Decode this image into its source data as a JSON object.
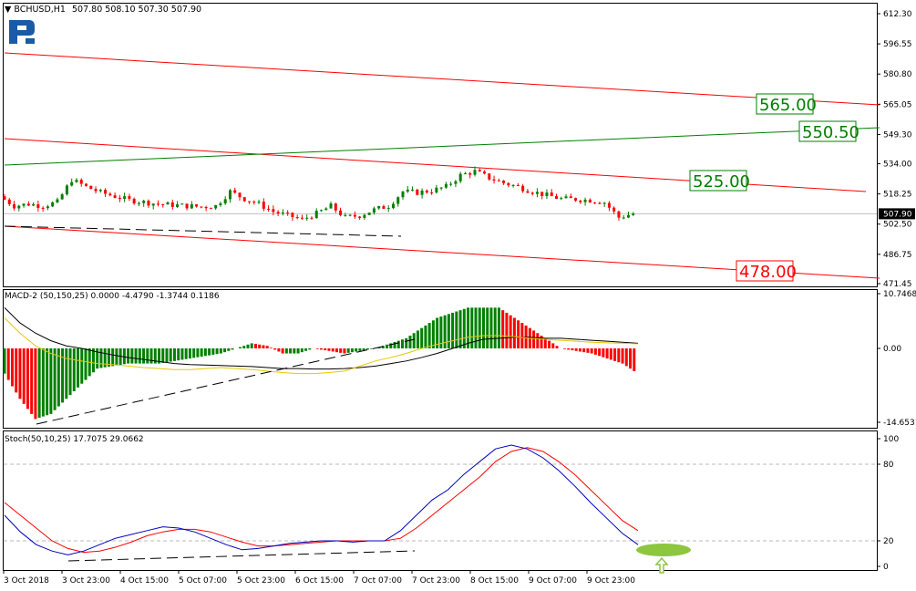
{
  "header": {
    "symbol": "BCHUSD,H1",
    "ohlc": "507.80 508.10 507.30 507.90"
  },
  "colors": {
    "bull": "#008000",
    "bear": "#ff0000",
    "trend_red": "#ff0000",
    "trend_green": "#008000",
    "marker": "#8dc63f",
    "logo": "#1a5aa6"
  },
  "chart_data": [
    {
      "type": "candlestick",
      "symbol": "BCHUSD",
      "timeframe": "H1",
      "yticks": [
        "612.30",
        "596.55",
        "580.80",
        "565.05",
        "549.30",
        "534.00",
        "518.25",
        "502.50",
        "486.75",
        "471.45"
      ],
      "ylim": [
        471.45,
        612.3
      ],
      "current_price": "507.90",
      "closes": [
        517,
        512,
        513,
        512,
        514,
        525.7,
        522,
        519,
        517,
        515,
        514,
        513,
        512.5,
        512,
        511.5,
        512,
        519.5,
        515.7,
        513,
        509,
        507,
        505,
        508,
        511.9,
        506,
        507,
        510,
        512,
        519.5,
        519,
        520,
        522,
        528,
        530,
        526.6,
        524,
        522,
        519.5,
        517.5,
        515.7,
        515.5,
        515,
        513.8,
        506,
        508
      ],
      "levels": [
        {
          "label": "565.00",
          "color": "green"
        },
        {
          "label": "550.50",
          "color": "green"
        },
        {
          "label": "525.00",
          "color": "green"
        },
        {
          "label": "478.00",
          "color": "red"
        }
      ],
      "xticks": [
        "3 Oct 2018",
        "3 Oct 23:00",
        "4 Oct 15:00",
        "5 Oct 07:00",
        "5 Oct 23:00",
        "6 Oct 15:00",
        "7 Oct 07:00",
        "7 Oct 23:00",
        "8 Oct 15:00",
        "9 Oct 07:00",
        "9 Oct 23:00"
      ]
    },
    {
      "type": "bar",
      "title": "MACD-2 (50,150,25) 0.0000 -4.4790 -1.3744 0.1186",
      "yticks": [
        "10.7468",
        "0.00",
        "-14.6531"
      ],
      "ylim": [
        -14.6531,
        10.7468
      ],
      "histogram": [
        -5,
        -10,
        -14,
        -13,
        -10,
        -7,
        -4,
        -3.5,
        -3,
        -3,
        -3,
        -2.5,
        -2,
        -1.5,
        -1,
        0,
        1,
        0.5,
        -1,
        -1,
        0,
        -0.5,
        -1,
        -0.5,
        0,
        1,
        2,
        4,
        6,
        7,
        8,
        8,
        8,
        6,
        4,
        2,
        0,
        -0.5,
        -1,
        -2,
        -3,
        -5
      ],
      "signal_black": [
        8,
        5,
        3,
        1.5,
        0.5,
        0,
        -0.7,
        -1.3,
        -1.8,
        -2.2,
        -2.6,
        -3,
        -3.2,
        -3.3,
        -3.4,
        -3.5,
        -3.6,
        -3.8,
        -4,
        -4,
        -4.1,
        -4.1,
        -4,
        -3.8,
        -3.5,
        -3,
        -2.5,
        -1.8,
        -1,
        0,
        1,
        1.8,
        2,
        2.2,
        2.2,
        2,
        2,
        1.8,
        1.6,
        1.4,
        1.2,
        1
      ],
      "signal_yellow": [
        6,
        3,
        0.5,
        -1,
        -2,
        -2.5,
        -3,
        -3.2,
        -3.5,
        -3.8,
        -4,
        -4.2,
        -4.2,
        -4,
        -3.8,
        -4,
        -4.2,
        -4.5,
        -4.8,
        -5,
        -5,
        -4.8,
        -4.5,
        -3.5,
        -2.5,
        -1.8,
        -1,
        0,
        0.8,
        1.5,
        2.2,
        2.5,
        2.5,
        2.3,
        2,
        1.8,
        1.6,
        1.4,
        1.2,
        1.1,
        1,
        0.9
      ]
    },
    {
      "type": "line",
      "title": "Stoch(50,10,25) 17.7075 29.0662",
      "yticks": [
        "100",
        "80",
        "20",
        "0"
      ],
      "ylim": [
        0,
        100
      ],
      "levels": [
        80,
        20
      ],
      "main": [
        40,
        27,
        17,
        12,
        9,
        12,
        17,
        22,
        25,
        28,
        31,
        30,
        27,
        22,
        17,
        13,
        14,
        16,
        18,
        19,
        20,
        20,
        19,
        20,
        20,
        28,
        40,
        52,
        60,
        72,
        82,
        92,
        95,
        92,
        85,
        75,
        63,
        50,
        38,
        26,
        17
      ],
      "signal": [
        50,
        40,
        30,
        20,
        14,
        11,
        12,
        15,
        19,
        24,
        27,
        29,
        29,
        27,
        23,
        19,
        16,
        16,
        17,
        18,
        19,
        20,
        20,
        20,
        20,
        22,
        30,
        40,
        50,
        60,
        70,
        82,
        90,
        93,
        90,
        82,
        72,
        60,
        48,
        36,
        28
      ]
    }
  ]
}
